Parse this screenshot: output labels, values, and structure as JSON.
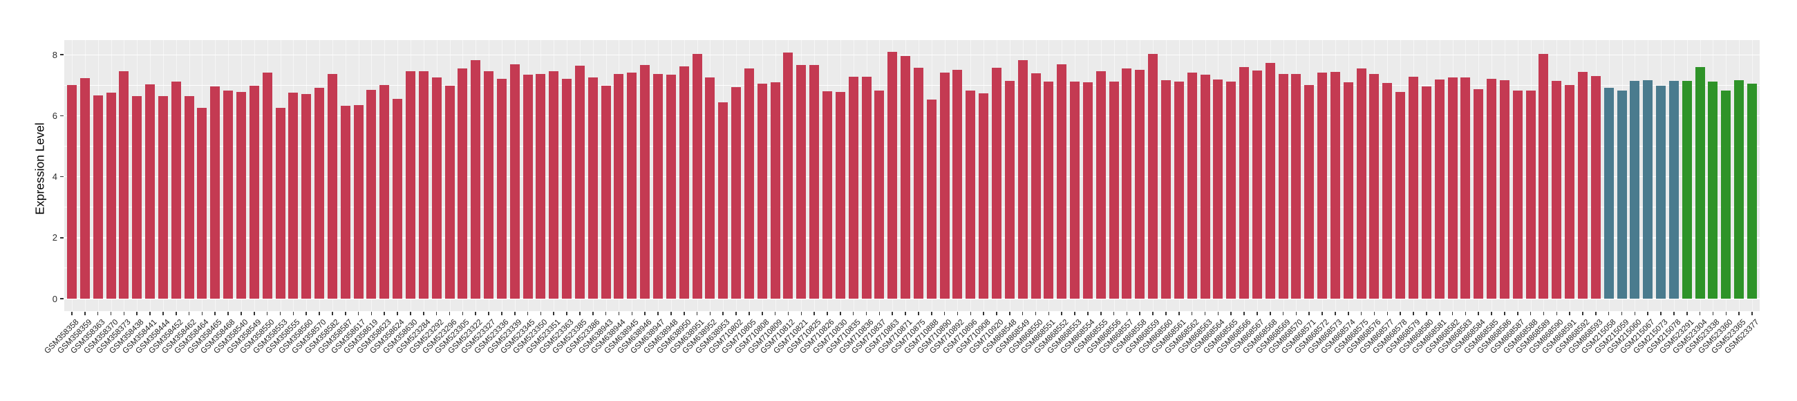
{
  "figure": {
    "ylabel": "Expression Level",
    "yticks": [
      "0",
      "2",
      "4",
      "6",
      "8"
    ],
    "panel_bg": "#EBEBEB",
    "grid_color": "#FFFFFF",
    "tick_color": "#333333"
  },
  "chart_data": {
    "type": "bar",
    "title": "",
    "xlabel": "",
    "ylabel": "Expression Level",
    "ylim": [
      0,
      8.48
    ],
    "yticks": [
      0,
      2,
      4,
      6,
      8
    ],
    "grid": true,
    "legend_position": "none",
    "palette": {
      "red": "#C43A52",
      "blue": "#4A7B8E",
      "green": "#2E9328"
    },
    "group_runs": [
      {
        "group": "red",
        "count": 118
      },
      {
        "group": "blue",
        "count": 6
      },
      {
        "group": "green",
        "count": 6
      }
    ],
    "categories": [
      "GSM358358",
      "GSM358359",
      "GSM358363",
      "GSM358370",
      "GSM358373",
      "GSM358438",
      "GSM358441",
      "GSM358444",
      "GSM358452",
      "GSM358462",
      "GSM358464",
      "GSM358465",
      "GSM358468",
      "GSM358540",
      "GSM358549",
      "GSM358550",
      "GSM358553",
      "GSM358555",
      "GSM358560",
      "GSM358570",
      "GSM358582",
      "GSM358587",
      "GSM358617",
      "GSM358619",
      "GSM358623",
      "GSM358624",
      "GSM358630",
      "GSM523284",
      "GSM523292",
      "GSM523296",
      "GSM523305",
      "GSM523322",
      "GSM523327",
      "GSM523336",
      "GSM523339",
      "GSM523345",
      "GSM523350",
      "GSM523351",
      "GSM523363",
      "GSM523385",
      "GSM523386",
      "GSM638943",
      "GSM638944",
      "GSM638945",
      "GSM638946",
      "GSM638947",
      "GSM638948",
      "GSM638950",
      "GSM638951",
      "GSM638952",
      "GSM638953",
      "GSM710802",
      "GSM710805",
      "GSM710808",
      "GSM710809",
      "GSM710812",
      "GSM710821",
      "GSM710825",
      "GSM710826",
      "GSM710830",
      "GSM710835",
      "GSM710836",
      "GSM710837",
      "GSM710863",
      "GSM710871",
      "GSM710875",
      "GSM710888",
      "GSM710890",
      "GSM710892",
      "GSM710896",
      "GSM710908",
      "GSM710920",
      "GSM868548",
      "GSM868549",
      "GSM868550",
      "GSM868551",
      "GSM868552",
      "GSM868553",
      "GSM868554",
      "GSM868555",
      "GSM868556",
      "GSM868557",
      "GSM868558",
      "GSM868559",
      "GSM868560",
      "GSM868561",
      "GSM868562",
      "GSM868563",
      "GSM868564",
      "GSM868565",
      "GSM868566",
      "GSM868567",
      "GSM868568",
      "GSM868569",
      "GSM868570",
      "GSM868571",
      "GSM868572",
      "GSM868573",
      "GSM868574",
      "GSM868575",
      "GSM868576",
      "GSM868577",
      "GSM868578",
      "GSM868579",
      "GSM868580",
      "GSM868581",
      "GSM868582",
      "GSM868583",
      "GSM868584",
      "GSM868585",
      "GSM868586",
      "GSM868587",
      "GSM868588",
      "GSM868589",
      "GSM868590",
      "GSM868591",
      "GSM868592",
      "GSM868593",
      "GSM215058",
      "GSM215059",
      "GSM215060",
      "GSM215067",
      "GSM215073",
      "GSM215078",
      "GSM523291",
      "GSM523304",
      "GSM523338",
      "GSM523360",
      "GSM523365",
      "GSM523377"
    ],
    "values": [
      7.01,
      7.24,
      6.67,
      6.75,
      7.46,
      6.64,
      7.03,
      6.64,
      7.12,
      6.65,
      6.26,
      6.96,
      6.82,
      6.79,
      6.99,
      7.41,
      6.27,
      6.76,
      6.72,
      6.92,
      7.38,
      6.32,
      6.35,
      6.84,
      7.0,
      6.56,
      7.46,
      7.45,
      7.25,
      6.99,
      7.56,
      7.83,
      7.47,
      7.22,
      7.68,
      7.34,
      7.36,
      7.47,
      7.22,
      7.65,
      7.25,
      6.98,
      7.36,
      7.41,
      7.66,
      7.38,
      7.34,
      7.62,
      8.03,
      7.25,
      6.44,
      6.93,
      7.56,
      7.06,
      7.1,
      8.07,
      7.66,
      7.66,
      6.8,
      6.79,
      7.27,
      7.27,
      6.83,
      8.09,
      7.96,
      7.58,
      6.53,
      7.42,
      7.51,
      6.83,
      6.74,
      7.58,
      7.15,
      7.83,
      7.4,
      7.13,
      7.69,
      7.13,
      7.1,
      7.47,
      7.11,
      7.56,
      7.5,
      8.03,
      7.17,
      7.13,
      7.41,
      7.35,
      7.19,
      7.13,
      7.6,
      7.49,
      7.73,
      7.36,
      7.36,
      7.0,
      7.41,
      7.44,
      7.1,
      7.56,
      7.36,
      7.07,
      6.78,
      7.29,
      6.97,
      7.19,
      7.25,
      7.26,
      6.86,
      7.2,
      7.17,
      6.82,
      6.82,
      8.02,
      7.15,
      7.01,
      7.44,
      7.3,
      6.91,
      6.83,
      7.14,
      7.16,
      6.98,
      7.14,
      7.14,
      7.6,
      7.11,
      6.83,
      7.16,
      7.06
    ]
  }
}
